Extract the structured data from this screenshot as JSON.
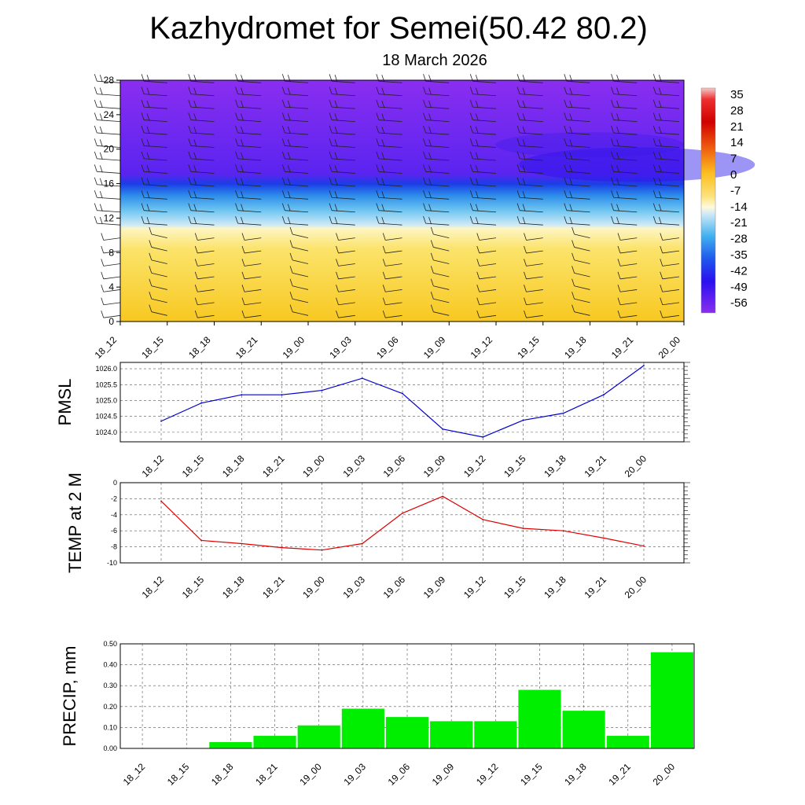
{
  "title": "Kazhydromet for Semei(50.42 80.2)",
  "subtitle": "18 March 2026",
  "time_labels": [
    "18_12",
    "18_15",
    "18_18",
    "18_21",
    "19_00",
    "19_03",
    "19_06",
    "19_09",
    "19_12",
    "19_15",
    "19_18",
    "19_21",
    "20_00"
  ],
  "colors": {
    "pmsl_line": "#0000cc",
    "temp_line": "#dd0000",
    "precip_bar": "#00ee00",
    "grid": "#555555"
  },
  "chart_data": [
    {
      "name": "cross-section",
      "type": "heatmap",
      "ylabel": "",
      "y_ticks": [
        0,
        4,
        8,
        12,
        16,
        20,
        24,
        28
      ],
      "ylim": [
        0,
        28
      ],
      "categories": [
        "18_12",
        "18_15",
        "18_18",
        "18_21",
        "19_00",
        "19_03",
        "19_06",
        "19_09",
        "19_12",
        "19_15",
        "19_18",
        "19_21",
        "20_00"
      ],
      "colorbar": {
        "labels": [
          "35",
          "28",
          "21",
          "14",
          "7",
          "0",
          "-7",
          "-14",
          "-21",
          "-28",
          "-35",
          "-42",
          "-49",
          "-56"
        ],
        "range": [
          -60,
          38
        ]
      },
      "fields": {
        "lower_layer": "warm (about -5 to -10) from 0 to about 11",
        "transition": "cold gradient from 11 to 17",
        "upper_layer": "about -56 above 17"
      }
    },
    {
      "name": "pmsl",
      "type": "line",
      "ylabel": "PMSL",
      "y_ticks": [
        "1024.0",
        "1024.5",
        "1025.0",
        "1025.5",
        "1026.0"
      ],
      "ylim": [
        1023.7,
        1026.2
      ],
      "categories": [
        "18_12",
        "18_15",
        "18_18",
        "18_21",
        "19_00",
        "19_03",
        "19_06",
        "19_09",
        "19_12",
        "19_15",
        "19_18",
        "19_21",
        "20_00"
      ],
      "values": [
        1024.35,
        1024.92,
        1025.18,
        1025.18,
        1025.32,
        1025.7,
        1025.22,
        1024.1,
        1023.85,
        1024.38,
        1024.6,
        1025.18,
        1026.1
      ]
    },
    {
      "name": "temp",
      "type": "line",
      "ylabel": "TEMP at 2 M",
      "y_ticks": [
        "0",
        "-2",
        "-4",
        "-6",
        "-8",
        "-10"
      ],
      "ylim": [
        -10,
        0
      ],
      "categories": [
        "18_12",
        "18_15",
        "18_18",
        "18_21",
        "19_00",
        "19_03",
        "19_06",
        "19_09",
        "19_12",
        "19_15",
        "19_18",
        "19_21",
        "20_00"
      ],
      "values": [
        -2.3,
        -7.2,
        -7.6,
        -8.1,
        -8.4,
        -7.6,
        -3.8,
        -1.7,
        -4.6,
        -5.7,
        -6.0,
        -6.9,
        -7.9
      ]
    },
    {
      "name": "precip",
      "type": "bar",
      "ylabel": "PRECIP, mm",
      "y_ticks": [
        "0.00",
        "0.10",
        "0.20",
        "0.30",
        "0.40",
        "0.50"
      ],
      "ylim": [
        0,
        0.5
      ],
      "categories": [
        "18_12",
        "18_15",
        "18_18",
        "18_21",
        "19_00",
        "19_03",
        "19_06",
        "19_09",
        "19_12",
        "19_15",
        "19_18",
        "19_21",
        "20_00"
      ],
      "values": [
        0.0,
        0.0,
        0.03,
        0.06,
        0.11,
        0.19,
        0.15,
        0.13,
        0.13,
        0.28,
        0.18,
        0.06,
        0.46
      ]
    }
  ]
}
